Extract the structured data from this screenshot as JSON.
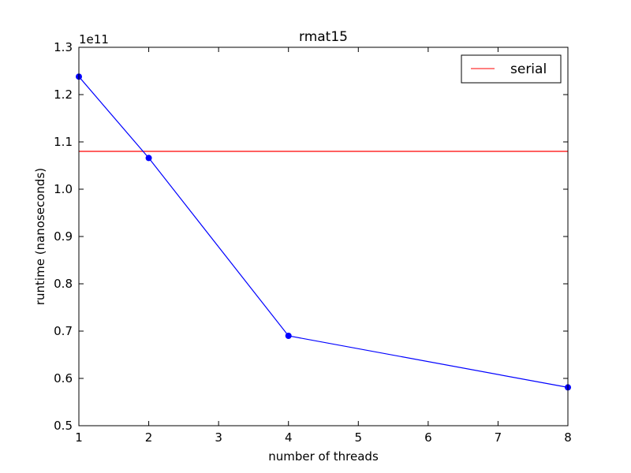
{
  "chart_data": {
    "type": "line",
    "title": "rmat15",
    "xlabel": "number of threads",
    "ylabel": "runtime (nanoseconds)",
    "y_offset_label": "1e11",
    "y_scale_multiplier": 100000000000,
    "xlim": [
      1,
      8
    ],
    "ylim": [
      0.5,
      1.3
    ],
    "x_ticks": [
      1,
      2,
      3,
      4,
      5,
      6,
      7,
      8
    ],
    "x_tick_labels": [
      "1",
      "2",
      "3",
      "4",
      "5",
      "6",
      "7",
      "8"
    ],
    "y_ticks": [
      0.5,
      0.6,
      0.7,
      0.8,
      0.9,
      1.0,
      1.1,
      1.2,
      1.3
    ],
    "y_tick_labels": [
      "0.5",
      "0.6",
      "0.7",
      "0.8",
      "0.9",
      "1.0",
      "1.1",
      "1.2",
      "1.3"
    ],
    "grid": false,
    "legend_position": "top-right",
    "series": [
      {
        "name": "",
        "color": "#0000ff",
        "marker": "circle",
        "x": [
          1,
          2,
          4,
          8
        ],
        "y": [
          1.238,
          1.066,
          0.69,
          0.581
        ]
      }
    ],
    "reference_lines": [
      {
        "name": "serial",
        "color": "#ff0000",
        "y": 1.08
      }
    ],
    "legend": [
      "serial"
    ]
  }
}
